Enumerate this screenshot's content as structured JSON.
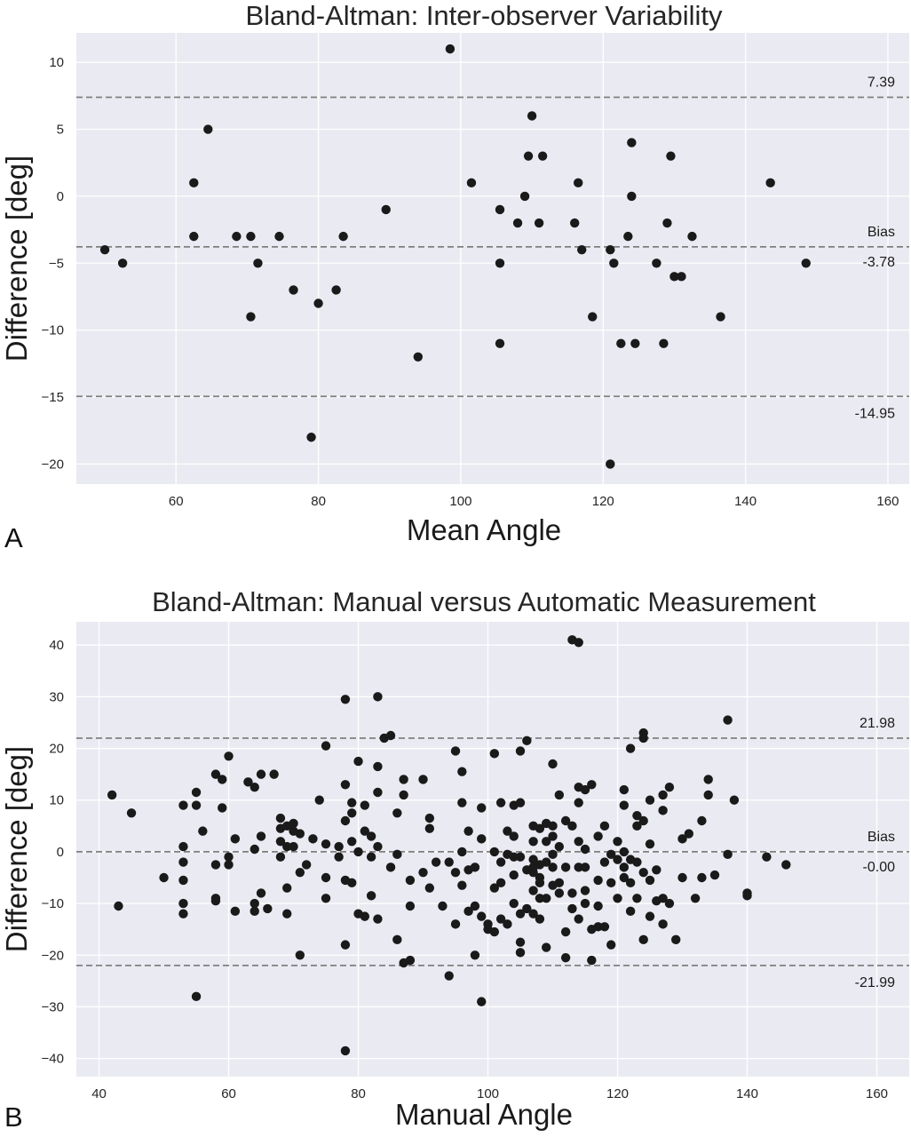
{
  "chart_data": [
    {
      "panel_label": "A",
      "type": "scatter",
      "title": "Bland-Altman: Inter-observer Variability",
      "xlabel": "Mean Angle",
      "ylabel": "Difference [deg]",
      "xlim": [
        46,
        163
      ],
      "ylim": [
        -21.5,
        12.2
      ],
      "xticks": [
        60,
        80,
        100,
        120,
        140,
        160
      ],
      "yticks": [
        10,
        5,
        0,
        -5,
        -10,
        -15,
        -20
      ],
      "grid": true,
      "background": "#eaeaf2",
      "point_color": "#1a1a1a",
      "line_color": "#808080",
      "lines": [
        {
          "y": 7.39,
          "label": "7.39"
        },
        {
          "y": -3.78,
          "label": "-3.78",
          "caption": "Bias"
        },
        {
          "y": -14.95,
          "label": "-14.95"
        }
      ],
      "points": [
        [
          50,
          -4
        ],
        [
          52.5,
          -5
        ],
        [
          62.5,
          1
        ],
        [
          62.5,
          -3
        ],
        [
          64.5,
          5
        ],
        [
          68.5,
          -3
        ],
        [
          70.5,
          -3
        ],
        [
          70.5,
          -9
        ],
        [
          71.5,
          -5
        ],
        [
          74.5,
          -3
        ],
        [
          76.5,
          -7
        ],
        [
          79,
          -18
        ],
        [
          80,
          -8
        ],
        [
          82.5,
          -7
        ],
        [
          83.5,
          -3
        ],
        [
          89.5,
          -1
        ],
        [
          94,
          -12
        ],
        [
          98.5,
          11
        ],
        [
          101.5,
          1
        ],
        [
          105.5,
          -1
        ],
        [
          105.5,
          -5
        ],
        [
          105.5,
          -11
        ],
        [
          108,
          -2
        ],
        [
          109,
          0
        ],
        [
          109.5,
          3
        ],
        [
          110,
          6
        ],
        [
          111,
          -2
        ],
        [
          111.5,
          3
        ],
        [
          116,
          -2
        ],
        [
          116.5,
          1
        ],
        [
          117,
          -4
        ],
        [
          118.5,
          -9
        ],
        [
          121,
          -4
        ],
        [
          121,
          -20
        ],
        [
          121.5,
          -5
        ],
        [
          122.5,
          -11
        ],
        [
          123.5,
          -3
        ],
        [
          124,
          4
        ],
        [
          124,
          0
        ],
        [
          124.5,
          -11
        ],
        [
          127.5,
          -5
        ],
        [
          128.5,
          -11
        ],
        [
          129,
          -2
        ],
        [
          129.5,
          3
        ],
        [
          130,
          -6
        ],
        [
          131,
          -6
        ],
        [
          132.5,
          -3
        ],
        [
          136.5,
          -9
        ],
        [
          143.5,
          1
        ],
        [
          148.5,
          -5
        ]
      ]
    },
    {
      "panel_label": "B",
      "type": "scatter",
      "title": "Bland-Altman: Manual versus Automatic Measurement",
      "xlabel": "Manual Angle",
      "ylabel": "Difference [deg]",
      "xlim": [
        36.5,
        165
      ],
      "ylim": [
        -43.5,
        44.5
      ],
      "xticks": [
        40,
        60,
        80,
        100,
        120,
        140,
        160
      ],
      "yticks": [
        40,
        30,
        20,
        10,
        0,
        -10,
        -20,
        -30,
        -40
      ],
      "grid": true,
      "background": "#eaeaf2",
      "point_color": "#1a1a1a",
      "line_color": "#808080",
      "lines": [
        {
          "y": 21.98,
          "label": "21.98"
        },
        {
          "y": 0,
          "label": "-0.00",
          "caption": "Bias"
        },
        {
          "y": -21.99,
          "label": "-21.99"
        }
      ],
      "points": [
        [
          42,
          11
        ],
        [
          43,
          -10.5
        ],
        [
          45,
          7.5
        ],
        [
          50,
          -5
        ],
        [
          53,
          9
        ],
        [
          53,
          1
        ],
        [
          53,
          -2
        ],
        [
          53,
          -5.5
        ],
        [
          53,
          -10
        ],
        [
          53,
          -12
        ],
        [
          55,
          11.5
        ],
        [
          55,
          9
        ],
        [
          55,
          -28
        ],
        [
          56,
          4
        ],
        [
          58,
          15
        ],
        [
          58,
          -2.5
        ],
        [
          58,
          -9
        ],
        [
          58,
          -9.5
        ],
        [
          59,
          14
        ],
        [
          59,
          8.5
        ],
        [
          60,
          18.5
        ],
        [
          60,
          -1
        ],
        [
          60,
          -2.5
        ],
        [
          61,
          2.5
        ],
        [
          61,
          -11.5
        ],
        [
          63,
          13.5
        ],
        [
          64,
          12.5
        ],
        [
          64,
          0.5
        ],
        [
          64,
          -10
        ],
        [
          64,
          -11.5
        ],
        [
          65,
          15
        ],
        [
          65,
          3
        ],
        [
          65,
          -8
        ],
        [
          66,
          -11
        ],
        [
          67,
          15
        ],
        [
          68,
          6.5
        ],
        [
          68,
          4.5
        ],
        [
          68,
          2
        ],
        [
          68,
          -1
        ],
        [
          69,
          5
        ],
        [
          69,
          1
        ],
        [
          69,
          -7
        ],
        [
          69,
          -12
        ],
        [
          70,
          5.5
        ],
        [
          70,
          4
        ],
        [
          70,
          1
        ],
        [
          71,
          3.5
        ],
        [
          71,
          -20
        ],
        [
          71,
          -4
        ],
        [
          72,
          -2.5
        ],
        [
          73,
          2.5
        ],
        [
          74,
          10
        ],
        [
          75,
          1.5
        ],
        [
          75,
          20.5
        ],
        [
          75,
          -5
        ],
        [
          75,
          -9
        ],
        [
          77,
          1
        ],
        [
          77,
          -1
        ],
        [
          78,
          13
        ],
        [
          78,
          6
        ],
        [
          78,
          29.5
        ],
        [
          78,
          -5.5
        ],
        [
          78,
          -18
        ],
        [
          78,
          -38.5
        ],
        [
          79,
          9.5
        ],
        [
          79,
          7.5
        ],
        [
          79,
          2
        ],
        [
          79,
          -6
        ],
        [
          80,
          17.5
        ],
        [
          80,
          0
        ],
        [
          80,
          -12
        ],
        [
          81,
          9
        ],
        [
          81,
          4
        ],
        [
          81,
          -12.5
        ],
        [
          82,
          3
        ],
        [
          82,
          -1
        ],
        [
          82,
          -8.5
        ],
        [
          83,
          30
        ],
        [
          83,
          16.5
        ],
        [
          83,
          11.5
        ],
        [
          83,
          1
        ],
        [
          83,
          -13
        ],
        [
          84,
          22
        ],
        [
          85,
          22.5
        ],
        [
          85,
          -3
        ],
        [
          86,
          7.5
        ],
        [
          86,
          -0.5
        ],
        [
          86,
          -17
        ],
        [
          87,
          14
        ],
        [
          87,
          11
        ],
        [
          87,
          -21.5
        ],
        [
          88,
          -5.5
        ],
        [
          88,
          -10.5
        ],
        [
          88,
          -21
        ],
        [
          90,
          14
        ],
        [
          90,
          -4
        ],
        [
          91,
          6.5
        ],
        [
          91,
          4.5
        ],
        [
          91,
          -7
        ],
        [
          92,
          -2
        ],
        [
          93,
          -10.5
        ],
        [
          94,
          -24
        ],
        [
          94,
          -2
        ],
        [
          95,
          19.5
        ],
        [
          95,
          -4
        ],
        [
          95,
          -14
        ],
        [
          96,
          15.5
        ],
        [
          96,
          9.5
        ],
        [
          96,
          0
        ],
        [
          96,
          -6.5
        ],
        [
          97,
          4
        ],
        [
          97,
          -3.5
        ],
        [
          97,
          -11.5
        ],
        [
          98,
          -3
        ],
        [
          98,
          -10.5
        ],
        [
          98,
          -20
        ],
        [
          99,
          -29
        ],
        [
          99,
          8.5
        ],
        [
          99,
          2.5
        ],
        [
          99,
          -12.5
        ],
        [
          100,
          -14
        ],
        [
          100,
          -15
        ],
        [
          101,
          19
        ],
        [
          101,
          0
        ],
        [
          101,
          -7
        ],
        [
          101,
          -15.5
        ],
        [
          102,
          9.5
        ],
        [
          102,
          -2
        ],
        [
          102,
          -6
        ],
        [
          102,
          -13
        ],
        [
          103,
          4
        ],
        [
          103,
          -0.5
        ],
        [
          103,
          -14
        ],
        [
          104,
          9
        ],
        [
          104,
          3
        ],
        [
          104,
          -1
        ],
        [
          104,
          -4.5
        ],
        [
          104,
          -10
        ],
        [
          105,
          19.5
        ],
        [
          105,
          9.5
        ],
        [
          105,
          -1
        ],
        [
          105,
          -12
        ],
        [
          105,
          -17.5
        ],
        [
          105,
          -19.5
        ],
        [
          106,
          21.5
        ],
        [
          106,
          -3.5
        ],
        [
          106,
          -11
        ],
        [
          107,
          5
        ],
        [
          107,
          2
        ],
        [
          107,
          -1.5
        ],
        [
          107,
          -3
        ],
        [
          107,
          -4
        ],
        [
          107,
          -7.5
        ],
        [
          107,
          -12
        ],
        [
          108,
          4.5
        ],
        [
          108,
          -2.5
        ],
        [
          108,
          -5
        ],
        [
          108,
          -6
        ],
        [
          108,
          -9
        ],
        [
          108,
          -13
        ],
        [
          109,
          5.5
        ],
        [
          109,
          2
        ],
        [
          109,
          -2
        ],
        [
          109,
          -9
        ],
        [
          109,
          -18.5
        ],
        [
          110,
          17
        ],
        [
          110,
          5
        ],
        [
          110,
          3
        ],
        [
          110,
          -0.5
        ],
        [
          110,
          -3
        ],
        [
          110,
          -6.5
        ],
        [
          111,
          11
        ],
        [
          111,
          1
        ],
        [
          111,
          -6
        ],
        [
          111,
          -8
        ],
        [
          112,
          6
        ],
        [
          112,
          -3
        ],
        [
          112,
          -15.5
        ],
        [
          112,
          -20.5
        ],
        [
          113,
          41
        ],
        [
          113,
          5
        ],
        [
          113,
          -8
        ],
        [
          113,
          -11
        ],
        [
          114,
          40.5
        ],
        [
          114,
          12.5
        ],
        [
          114,
          9.5
        ],
        [
          114,
          2
        ],
        [
          114,
          -3
        ],
        [
          114,
          -13
        ],
        [
          115,
          12
        ],
        [
          115,
          0.5
        ],
        [
          115,
          -3
        ],
        [
          115,
          -7.5
        ],
        [
          115,
          -10
        ],
        [
          116,
          13
        ],
        [
          116,
          -15
        ],
        [
          116,
          -21
        ],
        [
          117,
          3
        ],
        [
          117,
          -5.5
        ],
        [
          117,
          -10.5
        ],
        [
          117,
          -14.5
        ],
        [
          118,
          5
        ],
        [
          118,
          -2
        ],
        [
          118,
          -14.5
        ],
        [
          119,
          -0.5
        ],
        [
          119,
          -6
        ],
        [
          119,
          -18
        ],
        [
          120,
          2
        ],
        [
          120,
          -1.5
        ],
        [
          120,
          -9
        ],
        [
          121,
          12
        ],
        [
          121,
          9
        ],
        [
          121,
          0
        ],
        [
          121,
          -3
        ],
        [
          121,
          -5
        ],
        [
          122,
          20
        ],
        [
          122,
          -1.5
        ],
        [
          122,
          -6
        ],
        [
          122,
          -11.5
        ],
        [
          123,
          7
        ],
        [
          123,
          5
        ],
        [
          123,
          -2
        ],
        [
          123,
          -9
        ],
        [
          124,
          23
        ],
        [
          124,
          22
        ],
        [
          124,
          6
        ],
        [
          124,
          -4
        ],
        [
          124,
          -17
        ],
        [
          125,
          10
        ],
        [
          125,
          1.5
        ],
        [
          125,
          -5.5
        ],
        [
          125,
          -12.5
        ],
        [
          126,
          -3.5
        ],
        [
          126,
          -9.5
        ],
        [
          127,
          11
        ],
        [
          127,
          8
        ],
        [
          127,
          -9
        ],
        [
          127,
          -14
        ],
        [
          128,
          12.5
        ],
        [
          128,
          -10
        ],
        [
          129,
          -17
        ],
        [
          130,
          2.5
        ],
        [
          130,
          -5
        ],
        [
          131,
          3.5
        ],
        [
          132,
          -9
        ],
        [
          133,
          6
        ],
        [
          133,
          -5
        ],
        [
          134,
          14
        ],
        [
          134,
          11
        ],
        [
          135,
          -4.5
        ],
        [
          137,
          25.5
        ],
        [
          137,
          -0.5
        ],
        [
          138,
          10
        ],
        [
          140,
          -8
        ],
        [
          140,
          -8.5
        ],
        [
          143,
          -1
        ],
        [
          146,
          -2.5
        ]
      ]
    }
  ]
}
